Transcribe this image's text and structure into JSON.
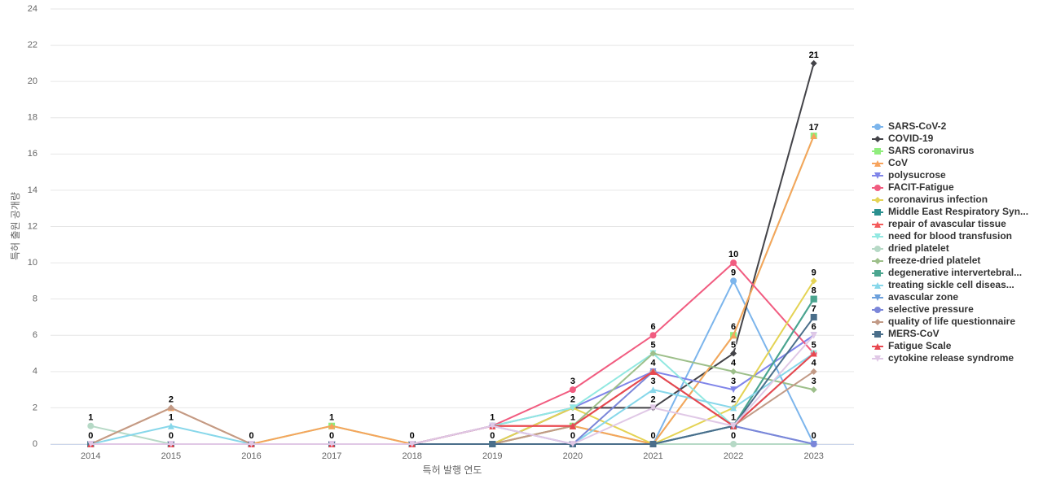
{
  "chart_data": {
    "type": "line",
    "xlabel": "특허 발행 연도",
    "ylabel": "특허 출원 공개량",
    "categories": [
      "2014",
      "2015",
      "2016",
      "2017",
      "2018",
      "2019",
      "2020",
      "2021",
      "2022",
      "2023"
    ],
    "ylim": [
      0,
      24
    ],
    "yticks": [
      0,
      2,
      4,
      6,
      8,
      10,
      12,
      14,
      16,
      18,
      20,
      22,
      24
    ],
    "grid": true,
    "legend": "right",
    "series": [
      {
        "name": "SARS-CoV-2",
        "color": "#7cb5ec",
        "marker": "circle",
        "values": [
          0,
          0,
          0,
          0,
          0,
          0,
          0,
          0,
          9,
          0
        ]
      },
      {
        "name": "COVID-19",
        "color": "#434348",
        "marker": "diamond",
        "values": [
          0,
          0,
          0,
          0,
          0,
          0,
          2,
          2,
          5,
          21
        ]
      },
      {
        "name": "SARS coronavirus",
        "color": "#90ed7d",
        "marker": "square",
        "values": [
          0,
          0,
          0,
          1,
          0,
          0,
          1,
          0,
          6,
          17
        ]
      },
      {
        "name": "CoV",
        "color": "#f7a35c",
        "marker": "triangle",
        "values": [
          0,
          2,
          0,
          1,
          0,
          0,
          1,
          0,
          6,
          17
        ]
      },
      {
        "name": "polysucrose",
        "color": "#8085e9",
        "marker": "triangle-down",
        "values": [
          0,
          0,
          0,
          0,
          0,
          1,
          2,
          4,
          3,
          6
        ]
      },
      {
        "name": "FACIT-Fatigue",
        "color": "#f15c80",
        "marker": "circle",
        "values": [
          0,
          0,
          0,
          0,
          0,
          1,
          3,
          6,
          10,
          5
        ]
      },
      {
        "name": "coronavirus infection",
        "color": "#e4d354",
        "marker": "diamond",
        "values": [
          0,
          0,
          0,
          0,
          0,
          0,
          2,
          0,
          2,
          9
        ]
      },
      {
        "name": "Middle East Respiratory Syn...",
        "color": "#2b908f",
        "marker": "square",
        "values": [
          0,
          0,
          0,
          0,
          0,
          0,
          0,
          0,
          1,
          8
        ]
      },
      {
        "name": "repair of avascular tissue",
        "color": "#f45b5b",
        "marker": "triangle",
        "values": [
          0,
          0,
          0,
          0,
          0,
          1,
          1,
          4,
          1,
          5
        ]
      },
      {
        "name": "need for blood transfusion",
        "color": "#91e8e1",
        "marker": "triangle-down",
        "values": [
          0,
          0,
          0,
          0,
          0,
          1,
          2,
          5,
          1,
          5
        ]
      },
      {
        "name": "dried platelet",
        "color": "#b6d9c6",
        "marker": "circle",
        "values": [
          1,
          0,
          0,
          0,
          0,
          0,
          0,
          0,
          0,
          0
        ]
      },
      {
        "name": "freeze-dried platelet",
        "color": "#9dbf8a",
        "marker": "diamond",
        "values": [
          0,
          0,
          0,
          0,
          0,
          0,
          1,
          5,
          4,
          3
        ]
      },
      {
        "name": "degenerative intervertebral...",
        "color": "#4ba58f",
        "marker": "square",
        "values": [
          0,
          0,
          0,
          0,
          0,
          0,
          0,
          0,
          1,
          8
        ]
      },
      {
        "name": "treating sickle cell diseas...",
        "color": "#87d7ea",
        "marker": "triangle",
        "values": [
          0,
          1,
          0,
          0,
          0,
          0,
          0,
          3,
          2,
          5
        ]
      },
      {
        "name": "avascular zone",
        "color": "#6ca0dc",
        "marker": "triangle-down",
        "values": [
          0,
          0,
          0,
          0,
          0,
          0,
          0,
          0,
          1,
          0
        ]
      },
      {
        "name": "selective pressure",
        "color": "#7b86d9",
        "marker": "circle",
        "values": [
          0,
          0,
          0,
          0,
          0,
          1,
          0,
          4,
          1,
          0
        ]
      },
      {
        "name": "quality of life questionnaire",
        "color": "#c29a86",
        "marker": "diamond",
        "values": [
          0,
          2,
          0,
          0,
          0,
          0,
          1,
          4,
          1,
          4
        ]
      },
      {
        "name": "MERS-CoV",
        "color": "#4a6e8a",
        "marker": "square",
        "values": [
          0,
          0,
          0,
          0,
          0,
          0,
          0,
          0,
          1,
          7
        ]
      },
      {
        "name": "Fatigue Scale",
        "color": "#e8474f",
        "marker": "triangle",
        "values": [
          0,
          0,
          0,
          0,
          0,
          1,
          1,
          4,
          1,
          5
        ]
      },
      {
        "name": "cytokine release syndrome",
        "color": "#e0c8e6",
        "marker": "triangle-down",
        "values": [
          0,
          0,
          0,
          0,
          0,
          1,
          0,
          2,
          1,
          6
        ]
      }
    ]
  }
}
